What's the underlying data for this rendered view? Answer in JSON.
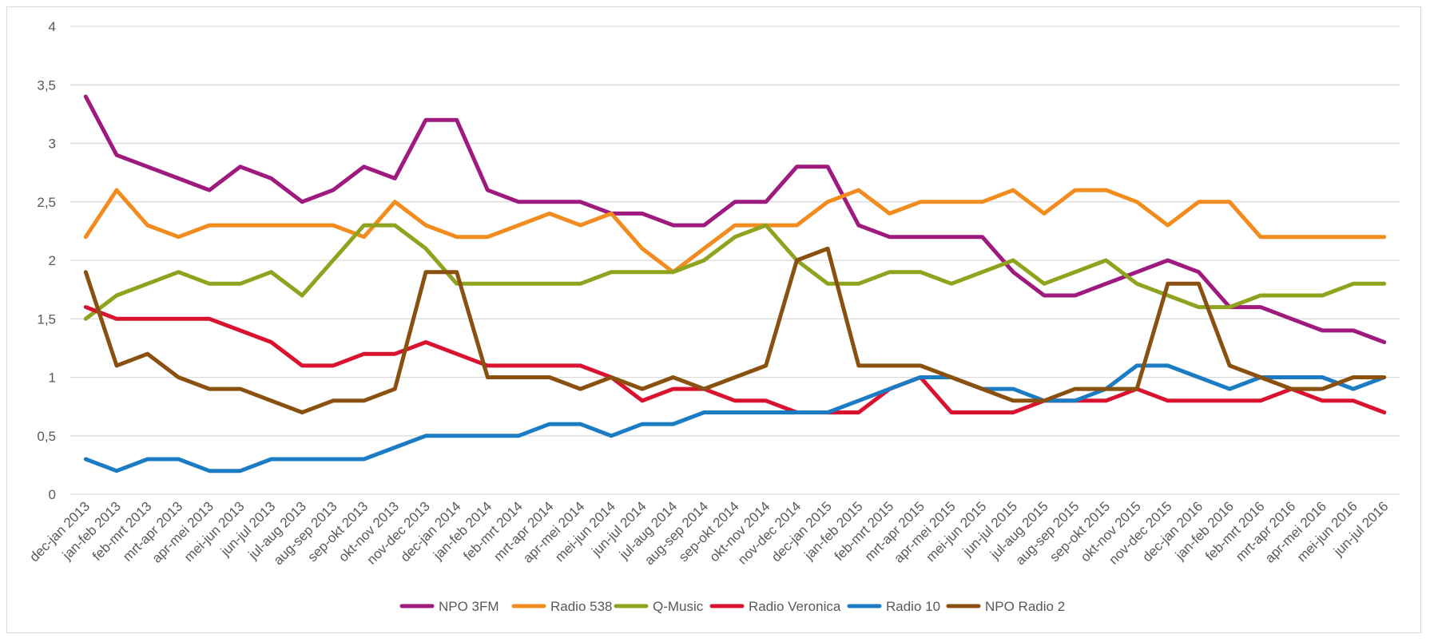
{
  "chart_data": {
    "type": "line",
    "title": "",
    "xlabel": "",
    "ylabel": "",
    "ylim": [
      0,
      4
    ],
    "yticks": [
      "0",
      "0,5",
      "1",
      "1,5",
      "2",
      "2,5",
      "3",
      "3,5",
      "4"
    ],
    "grid": true,
    "legend_position": "bottom",
    "categories": [
      "dec-jan 2013",
      "jan-feb 2013",
      "feb-mrt 2013",
      "mrt-apr 2013",
      "apr-mei 2013",
      "mei-jun 2013",
      "jun-jul 2013",
      "jul-aug 2013",
      "aug-sep 2013",
      "sep-okt 2013",
      "okt-nov 2013",
      "nov-dec 2013",
      "dec-jan 2014",
      "jan-feb 2014",
      "feb-mrt 2014",
      "mrt-apr 2014",
      "apr-mei 2014",
      "mei-jun 2014",
      "jun-jul 2014",
      "jul-aug 2014",
      "aug-sep 2014",
      "sep-okt 2014",
      "okt-nov 2014",
      "nov-dec 2014",
      "dec-jan 2015",
      "jan-feb 2015",
      "feb-mrt 2015",
      "mrt-apr 2015",
      "apr-mei 2015",
      "mei-jun 2015",
      "jun-jul 2015",
      "jul-aug 2015",
      "aug-sep 2015",
      "sep-okt 2015",
      "okt-nov 2015",
      "nov-dec 2015",
      "dec-jan 2016",
      "jan-feb 2016",
      "feb-mrt 2016",
      "mrt-apr 2016",
      "apr-mei 2016",
      "mei-jun 2016",
      "jun-jul 2016"
    ],
    "series": [
      {
        "name": "NPO 3FM",
        "color": "#9e1a7e",
        "values": [
          3.4,
          2.9,
          2.8,
          2.7,
          2.6,
          2.8,
          2.7,
          2.5,
          2.6,
          2.8,
          2.7,
          3.2,
          3.2,
          2.6,
          2.5,
          2.5,
          2.5,
          2.4,
          2.4,
          2.3,
          2.3,
          2.5,
          2.5,
          2.8,
          2.8,
          2.3,
          2.2,
          2.2,
          2.2,
          2.2,
          1.9,
          1.7,
          1.7,
          1.8,
          1.9,
          2.0,
          1.9,
          1.6,
          1.6,
          1.5,
          1.4,
          1.4,
          1.3
        ]
      },
      {
        "name": "Radio 538",
        "color": "#f28c1e",
        "values": [
          2.2,
          2.6,
          2.3,
          2.2,
          2.3,
          2.3,
          2.3,
          2.3,
          2.3,
          2.2,
          2.5,
          2.3,
          2.2,
          2.2,
          2.3,
          2.4,
          2.3,
          2.4,
          2.1,
          1.9,
          2.1,
          2.3,
          2.3,
          2.3,
          2.5,
          2.6,
          2.4,
          2.5,
          2.5,
          2.5,
          2.6,
          2.4,
          2.6,
          2.6,
          2.5,
          2.3,
          2.5,
          2.5,
          2.2,
          2.2,
          2.2,
          2.2,
          2.2
        ]
      },
      {
        "name": "Q-Music",
        "color": "#8fa31e",
        "values": [
          1.5,
          1.7,
          1.8,
          1.9,
          1.8,
          1.8,
          1.9,
          1.7,
          2.0,
          2.3,
          2.3,
          2.1,
          1.8,
          1.8,
          1.8,
          1.8,
          1.8,
          1.9,
          1.9,
          1.9,
          2.0,
          2.2,
          2.3,
          2.0,
          1.8,
          1.8,
          1.9,
          1.9,
          1.8,
          1.9,
          2.0,
          1.8,
          1.9,
          2.0,
          1.8,
          1.7,
          1.6,
          1.6,
          1.7,
          1.7,
          1.7,
          1.8,
          1.8
        ]
      },
      {
        "name": "Radio Veronica",
        "color": "#d9132f",
        "values": [
          1.6,
          1.5,
          1.5,
          1.5,
          1.5,
          1.4,
          1.3,
          1.1,
          1.1,
          1.2,
          1.2,
          1.3,
          1.2,
          1.1,
          1.1,
          1.1,
          1.1,
          1.0,
          0.8,
          0.9,
          0.9,
          0.8,
          0.8,
          0.7,
          0.7,
          0.7,
          0.9,
          1.0,
          0.7,
          0.7,
          0.7,
          0.8,
          0.8,
          0.8,
          0.9,
          0.8,
          0.8,
          0.8,
          0.8,
          0.9,
          0.8,
          0.8,
          0.7
        ]
      },
      {
        "name": "Radio 10",
        "color": "#1b7cc4",
        "values": [
          0.3,
          0.2,
          0.3,
          0.3,
          0.2,
          0.2,
          0.3,
          0.3,
          0.3,
          0.3,
          0.4,
          0.5,
          0.5,
          0.5,
          0.5,
          0.6,
          0.6,
          0.5,
          0.6,
          0.6,
          0.7,
          0.7,
          0.7,
          0.7,
          0.7,
          0.8,
          0.9,
          1.0,
          1.0,
          0.9,
          0.9,
          0.8,
          0.8,
          0.9,
          1.1,
          1.1,
          1.0,
          0.9,
          1.0,
          1.0,
          1.0,
          0.9,
          1.0
        ]
      },
      {
        "name": "NPO Radio 2",
        "color": "#8a5010",
        "values": [
          1.9,
          1.1,
          1.2,
          1.0,
          0.9,
          0.9,
          0.8,
          0.7,
          0.8,
          0.8,
          0.9,
          1.9,
          1.9,
          1.0,
          1.0,
          1.0,
          0.9,
          1.0,
          0.9,
          1.0,
          0.9,
          1.0,
          1.1,
          2.0,
          2.1,
          1.1,
          1.1,
          1.1,
          1.0,
          0.9,
          0.8,
          0.8,
          0.9,
          0.9,
          0.9,
          1.8,
          1.8,
          1.1,
          1.0,
          0.9,
          0.9,
          1.0,
          1.0
        ]
      }
    ]
  }
}
